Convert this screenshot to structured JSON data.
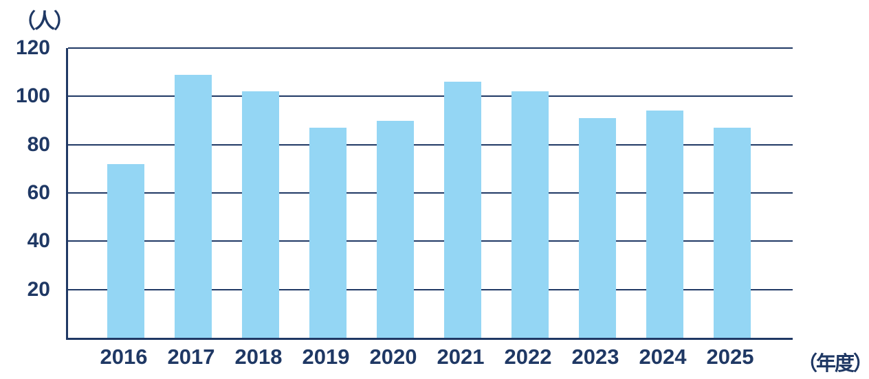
{
  "chart_data": {
    "type": "bar",
    "title": "",
    "categories": [
      "2016",
      "2017",
      "2018",
      "2019",
      "2020",
      "2021",
      "2022",
      "2023",
      "2024",
      "2025"
    ],
    "values": [
      72,
      109,
      102,
      87,
      90,
      106,
      102,
      91,
      94,
      87
    ],
    "xlabel": "（年度）",
    "ylabel": "（人）",
    "ylim": [
      0,
      120
    ],
    "yticks": [
      20,
      40,
      60,
      80,
      100,
      120
    ],
    "grid": true,
    "legend_position": "none",
    "colors": {
      "bar": "#94D6F4",
      "axis": "#1F3864",
      "text": "#1F3864",
      "background": "#FFFFFF"
    }
  }
}
